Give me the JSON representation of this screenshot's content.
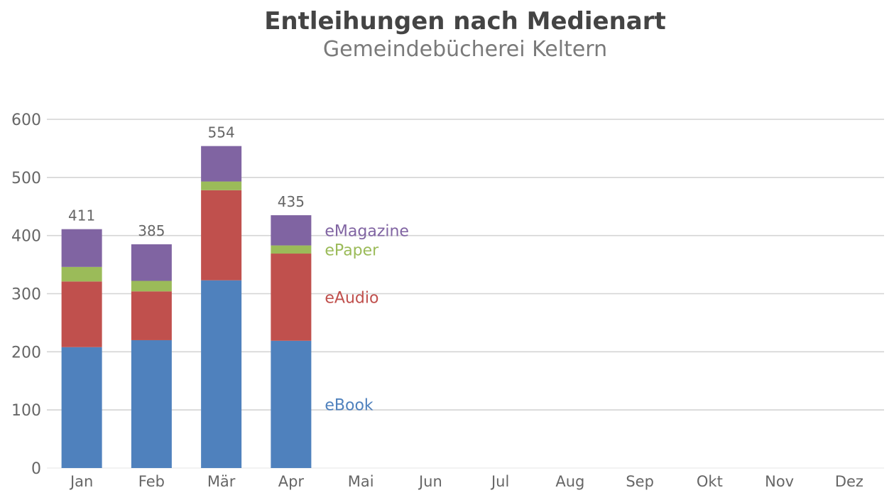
{
  "chart_data": {
    "type": "bar",
    "stacked": true,
    "title": "Entleihungen nach Medienart",
    "subtitle": "Gemeindebücherei Keltern",
    "xlabel": "",
    "ylabel": "",
    "categories": [
      "Jan",
      "Feb",
      "Mär",
      "Apr",
      "Mai",
      "Jun",
      "Jul",
      "Aug",
      "Sep",
      "Okt",
      "Nov",
      "Dez"
    ],
    "ylim": [
      0,
      600
    ],
    "yticks": [
      0,
      100,
      200,
      300,
      400,
      500,
      600
    ],
    "grid": true,
    "legend": "inline-right-of-last-bar",
    "series": [
      {
        "name": "eBook",
        "color": "#4f81bd",
        "values": [
          208,
          220,
          323,
          219,
          null,
          null,
          null,
          null,
          null,
          null,
          null,
          null
        ]
      },
      {
        "name": "eAudio",
        "color": "#c0504d",
        "values": [
          113,
          84,
          155,
          150,
          null,
          null,
          null,
          null,
          null,
          null,
          null,
          null
        ]
      },
      {
        "name": "ePaper",
        "color": "#9bbb59",
        "values": [
          25,
          18,
          15,
          14,
          null,
          null,
          null,
          null,
          null,
          null,
          null,
          null
        ]
      },
      {
        "name": "eMagazine",
        "color": "#8064a2",
        "values": [
          65,
          63,
          61,
          52,
          null,
          null,
          null,
          null,
          null,
          null,
          null,
          null
        ]
      }
    ],
    "totals": [
      411,
      385,
      554,
      435,
      null,
      null,
      null,
      null,
      null,
      null,
      null,
      null
    ]
  }
}
